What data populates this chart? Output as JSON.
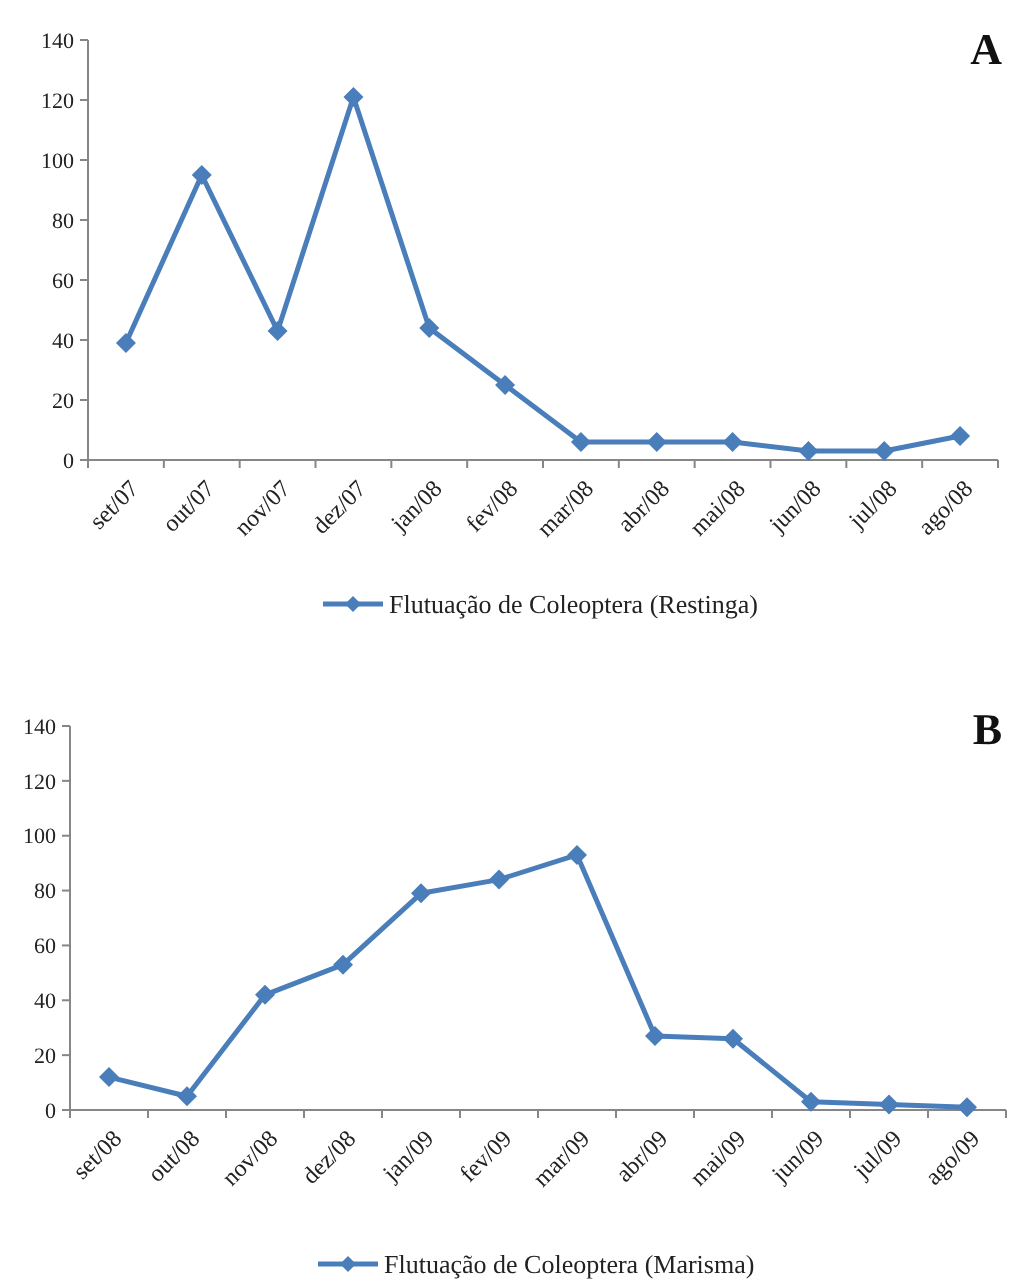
{
  "chart_data": [
    {
      "type": "line",
      "annotations": [
        "A"
      ],
      "categories": [
        "set/07",
        "out/07",
        "nov/07",
        "dez/07",
        "jan/08",
        "fev/08",
        "mar/08",
        "abr/08",
        "mai/08",
        "jun/08",
        "jul/08",
        "ago/08"
      ],
      "series": [
        {
          "name": "Flutuação de Coleoptera (Restinga)",
          "color": "#4a7ebb",
          "values": [
            39,
            95,
            43,
            121,
            44,
            25,
            6,
            6,
            6,
            3,
            3,
            8
          ]
        }
      ],
      "ylim": [
        0,
        140
      ],
      "yticks": [
        0,
        20,
        40,
        60,
        80,
        100,
        120,
        140
      ],
      "legend": "bottom",
      "marker": "diamond",
      "grid": false
    },
    {
      "type": "line",
      "annotations": [
        "B"
      ],
      "categories": [
        "set/08",
        "out/08",
        "nov/08",
        "dez/08",
        "jan/09",
        "fev/09",
        "mar/09",
        "abr/09",
        "mai/09",
        "jun/09",
        "jul/09",
        "ago/09"
      ],
      "series": [
        {
          "name": "Flutuação de Coleoptera (Marisma)",
          "color": "#4a7ebb",
          "values": [
            12,
            5,
            42,
            53,
            79,
            84,
            93,
            27,
            26,
            3,
            2,
            1
          ]
        }
      ],
      "ylim": [
        0,
        140
      ],
      "yticks": [
        0,
        20,
        40,
        60,
        80,
        100,
        120,
        140
      ],
      "legend": "bottom",
      "marker": "diamond",
      "grid": false
    }
  ]
}
